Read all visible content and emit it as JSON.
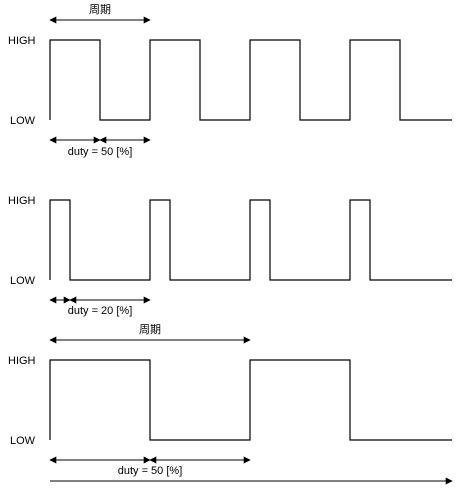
{
  "panels": [
    {
      "high_label": "HIGH",
      "low_label": "LOW",
      "period_label": "周期",
      "duty_label": "duty = 50 [%]",
      "duty": 0.5,
      "cycles": 4
    },
    {
      "high_label": "HIGH",
      "low_label": "LOW",
      "period_label": "",
      "duty_label": "duty = 20 [%]",
      "duty": 0.2,
      "cycles": 4
    },
    {
      "high_label": "HIGH",
      "low_label": "LOW",
      "period_label": "周期",
      "duty_label": "duty = 50 [%]",
      "duty": 0.5,
      "cycles": 2
    }
  ]
}
